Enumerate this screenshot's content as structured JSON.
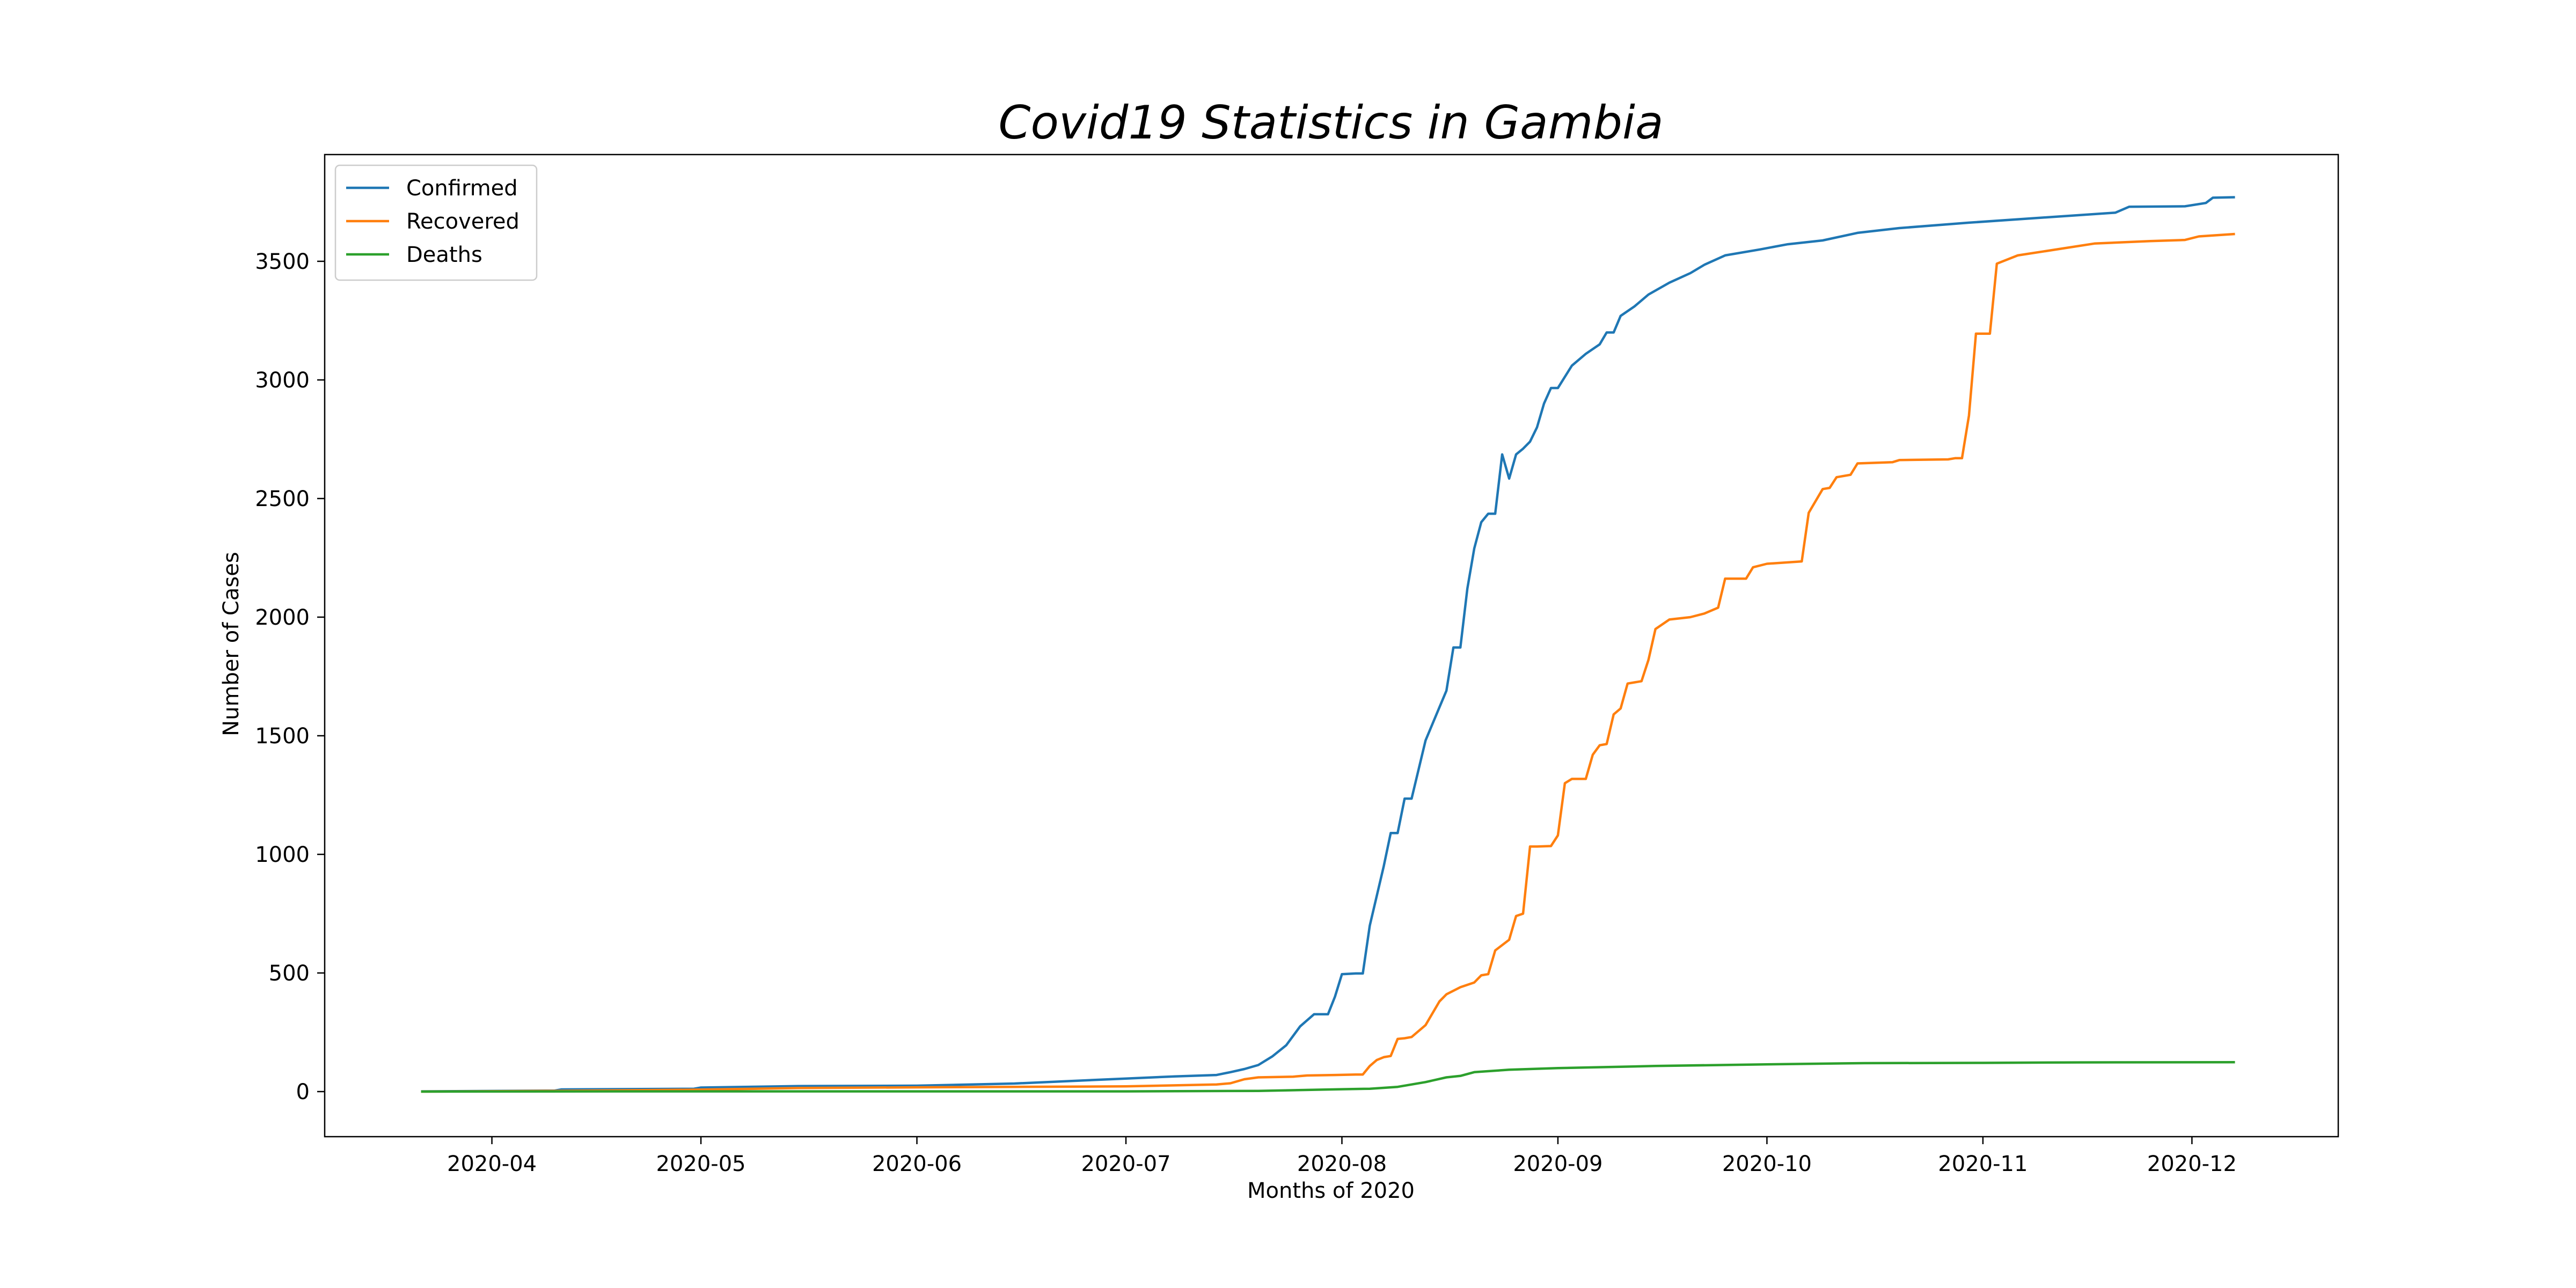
{
  "chart_data": {
    "type": "line",
    "title": "Covid19 Statistics in Gambia",
    "xlabel": "Months of 2020",
    "ylabel": "Number of Cases",
    "xlim": [
      "2020-03-08",
      "2020-12-22"
    ],
    "ylim": [
      -190,
      3950
    ],
    "x_ticks": [
      "2020-04",
      "2020-05",
      "2020-06",
      "2020-07",
      "2020-08",
      "2020-09",
      "2020-10",
      "2020-11",
      "2020-12"
    ],
    "y_ticks": [
      0,
      500,
      1000,
      1500,
      2000,
      2500,
      3000,
      3500
    ],
    "grid": false,
    "legend_position": "top-left",
    "series": [
      {
        "name": "Confirmed",
        "color": "#1f77b4",
        "points": [
          [
            "2020-03-22",
            1
          ],
          [
            "2020-04-10",
            4
          ],
          [
            "2020-04-11",
            9
          ],
          [
            "2020-04-30",
            12
          ],
          [
            "2020-05-01",
            17
          ],
          [
            "2020-05-15",
            23
          ],
          [
            "2020-06-01",
            25
          ],
          [
            "2020-06-15",
            34
          ],
          [
            "2020-07-01",
            55
          ],
          [
            "2020-07-08",
            64
          ],
          [
            "2020-07-14",
            70
          ],
          [
            "2020-07-16",
            82
          ],
          [
            "2020-07-18",
            95
          ],
          [
            "2020-07-20",
            112
          ],
          [
            "2020-07-22",
            148
          ],
          [
            "2020-07-24",
            195
          ],
          [
            "2020-07-26",
            275
          ],
          [
            "2020-07-28",
            326
          ],
          [
            "2020-07-30",
            326
          ],
          [
            "2020-07-31",
            400
          ],
          [
            "2020-08-01",
            495
          ],
          [
            "2020-08-03",
            498
          ],
          [
            "2020-08-04",
            498
          ],
          [
            "2020-08-05",
            700
          ],
          [
            "2020-08-07",
            950
          ],
          [
            "2020-08-08",
            1090
          ],
          [
            "2020-08-09",
            1090
          ],
          [
            "2020-08-10",
            1235
          ],
          [
            "2020-08-11",
            1235
          ],
          [
            "2020-08-13",
            1480
          ],
          [
            "2020-08-15",
            1620
          ],
          [
            "2020-08-16",
            1690
          ],
          [
            "2020-08-17",
            1872
          ],
          [
            "2020-08-18",
            1872
          ],
          [
            "2020-08-19",
            2120
          ],
          [
            "2020-08-20",
            2290
          ],
          [
            "2020-08-21",
            2400
          ],
          [
            "2020-08-22",
            2436
          ],
          [
            "2020-08-23",
            2436
          ],
          [
            "2020-08-24",
            2686
          ],
          [
            "2020-08-25",
            2584
          ],
          [
            "2020-08-26",
            2686
          ],
          [
            "2020-08-27",
            2710
          ],
          [
            "2020-08-28",
            2740
          ],
          [
            "2020-08-29",
            2800
          ],
          [
            "2020-08-30",
            2900
          ],
          [
            "2020-08-31",
            2966
          ],
          [
            "2020-09-01",
            2966
          ],
          [
            "2020-09-03",
            3060
          ],
          [
            "2020-09-05",
            3110
          ],
          [
            "2020-09-07",
            3150
          ],
          [
            "2020-09-08",
            3200
          ],
          [
            "2020-09-09",
            3200
          ],
          [
            "2020-09-10",
            3270
          ],
          [
            "2020-09-12",
            3310
          ],
          [
            "2020-09-14",
            3360
          ],
          [
            "2020-09-17",
            3410
          ],
          [
            "2020-09-20",
            3450
          ],
          [
            "2020-09-22",
            3485
          ],
          [
            "2020-09-25",
            3525
          ],
          [
            "2020-09-30",
            3550
          ],
          [
            "2020-10-04",
            3572
          ],
          [
            "2020-10-09",
            3588
          ],
          [
            "2020-10-14",
            3620
          ],
          [
            "2020-10-20",
            3640
          ],
          [
            "2020-10-30",
            3663
          ],
          [
            "2020-11-10",
            3685
          ],
          [
            "2020-11-20",
            3705
          ],
          [
            "2020-11-22",
            3730
          ],
          [
            "2020-11-30",
            3732
          ],
          [
            "2020-12-03",
            3746
          ],
          [
            "2020-12-04",
            3768
          ],
          [
            "2020-12-07",
            3770
          ]
        ]
      },
      {
        "name": "Recovered",
        "color": "#ff7f0e",
        "points": [
          [
            "2020-03-22",
            0
          ],
          [
            "2020-04-10",
            3
          ],
          [
            "2020-04-30",
            8
          ],
          [
            "2020-05-15",
            15
          ],
          [
            "2020-06-01",
            18
          ],
          [
            "2020-06-15",
            20
          ],
          [
            "2020-07-01",
            22
          ],
          [
            "2020-07-14",
            30
          ],
          [
            "2020-07-16",
            35
          ],
          [
            "2020-07-18",
            52
          ],
          [
            "2020-07-20",
            60
          ],
          [
            "2020-07-25",
            63
          ],
          [
            "2020-07-27",
            68
          ],
          [
            "2020-07-31",
            70
          ],
          [
            "2020-08-03",
            72
          ],
          [
            "2020-08-04",
            72
          ],
          [
            "2020-08-05",
            108
          ],
          [
            "2020-08-06",
            133
          ],
          [
            "2020-08-07",
            145
          ],
          [
            "2020-08-08",
            150
          ],
          [
            "2020-08-09",
            222
          ],
          [
            "2020-08-10",
            225
          ],
          [
            "2020-08-11",
            230
          ],
          [
            "2020-08-13",
            280
          ],
          [
            "2020-08-15",
            380
          ],
          [
            "2020-08-16",
            410
          ],
          [
            "2020-08-18",
            440
          ],
          [
            "2020-08-20",
            460
          ],
          [
            "2020-08-21",
            490
          ],
          [
            "2020-08-22",
            495
          ],
          [
            "2020-08-23",
            595
          ],
          [
            "2020-08-25",
            640
          ],
          [
            "2020-08-26",
            740
          ],
          [
            "2020-08-27",
            750
          ],
          [
            "2020-08-28",
            1033
          ],
          [
            "2020-08-29",
            1033
          ],
          [
            "2020-08-31",
            1035
          ],
          [
            "2020-09-01",
            1080
          ],
          [
            "2020-09-02",
            1300
          ],
          [
            "2020-09-03",
            1318
          ],
          [
            "2020-09-05",
            1318
          ],
          [
            "2020-09-06",
            1420
          ],
          [
            "2020-09-07",
            1460
          ],
          [
            "2020-09-08",
            1465
          ],
          [
            "2020-09-09",
            1590
          ],
          [
            "2020-09-10",
            1615
          ],
          [
            "2020-09-11",
            1720
          ],
          [
            "2020-09-13",
            1730
          ],
          [
            "2020-09-14",
            1820
          ],
          [
            "2020-09-15",
            1950
          ],
          [
            "2020-09-17",
            1990
          ],
          [
            "2020-09-20",
            2000
          ],
          [
            "2020-09-22",
            2015
          ],
          [
            "2020-09-24",
            2040
          ],
          [
            "2020-09-25",
            2162
          ],
          [
            "2020-09-28",
            2162
          ],
          [
            "2020-09-29",
            2210
          ],
          [
            "2020-10-01",
            2225
          ],
          [
            "2020-10-06",
            2235
          ],
          [
            "2020-10-07",
            2440
          ],
          [
            "2020-10-08",
            2490
          ],
          [
            "2020-10-09",
            2540
          ],
          [
            "2020-10-10",
            2545
          ],
          [
            "2020-10-11",
            2590
          ],
          [
            "2020-10-13",
            2600
          ],
          [
            "2020-10-14",
            2648
          ],
          [
            "2020-10-19",
            2653
          ],
          [
            "2020-10-20",
            2662
          ],
          [
            "2020-10-27",
            2665
          ],
          [
            "2020-10-28",
            2670
          ],
          [
            "2020-10-29",
            2670
          ],
          [
            "2020-10-30",
            2850
          ],
          [
            "2020-10-31",
            3195
          ],
          [
            "2020-11-02",
            3195
          ],
          [
            "2020-11-03",
            3490
          ],
          [
            "2020-11-06",
            3525
          ],
          [
            "2020-11-12",
            3552
          ],
          [
            "2020-11-17",
            3575
          ],
          [
            "2020-11-25",
            3585
          ],
          [
            "2020-11-30",
            3590
          ],
          [
            "2020-12-02",
            3605
          ],
          [
            "2020-12-07",
            3615
          ]
        ]
      },
      {
        "name": "Deaths",
        "color": "#2ca02c",
        "points": [
          [
            "2020-03-22",
            0
          ],
          [
            "2020-04-20",
            1
          ],
          [
            "2020-06-01",
            1
          ],
          [
            "2020-07-01",
            1
          ],
          [
            "2020-07-20",
            3
          ],
          [
            "2020-08-01",
            10
          ],
          [
            "2020-08-05",
            12
          ],
          [
            "2020-08-09",
            20
          ],
          [
            "2020-08-13",
            40
          ],
          [
            "2020-08-16",
            60
          ],
          [
            "2020-08-18",
            66
          ],
          [
            "2020-08-20",
            82
          ],
          [
            "2020-08-25",
            92
          ],
          [
            "2020-09-01",
            99
          ],
          [
            "2020-09-15",
            108
          ],
          [
            "2020-10-01",
            115
          ],
          [
            "2020-10-15",
            120
          ],
          [
            "2020-11-01",
            121
          ],
          [
            "2020-11-15",
            123
          ],
          [
            "2020-12-07",
            124
          ]
        ]
      }
    ]
  }
}
